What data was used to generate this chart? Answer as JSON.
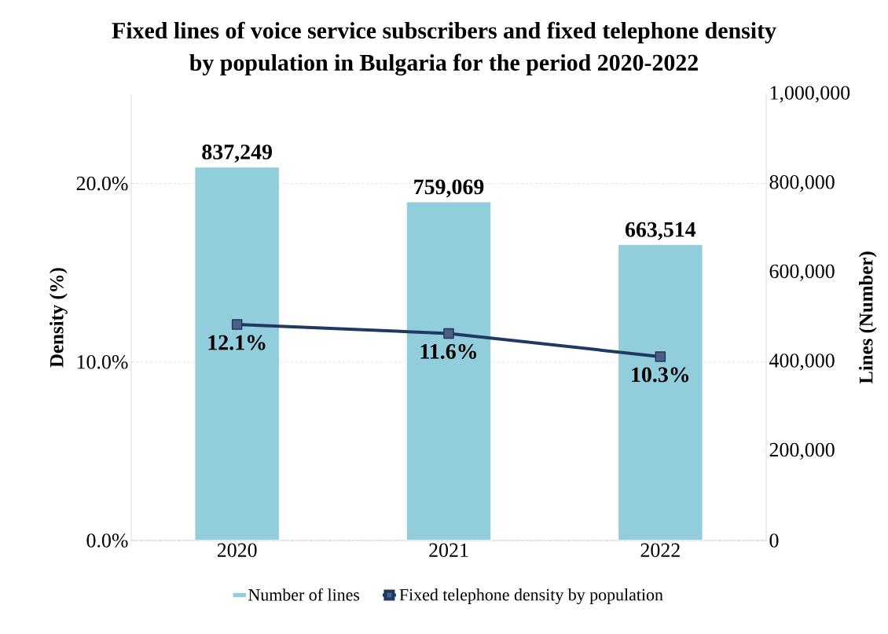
{
  "chart_data": {
    "type": "bar",
    "title": "Fixed lines of voice service subscribers and fixed telephone density by population in Bulgaria for the period 2020-2022",
    "categories": [
      "2020",
      "2021",
      "2022"
    ],
    "series": [
      {
        "name": "Number of lines",
        "axis": "y2",
        "color": "#92cddc",
        "values": [
          837249,
          759069,
          663514
        ],
        "value_labels": [
          "837,249",
          "759,069",
          "663,514"
        ]
      },
      {
        "name": "Fixed telephone density by population",
        "type": "line",
        "axis": "y",
        "color": "#1f3864",
        "marker": "square",
        "line_style": "solid",
        "values": [
          12.1,
          11.6,
          10.3
        ],
        "value_labels": [
          "12.1%",
          "11.6%",
          "10.3%"
        ]
      }
    ],
    "ylabel": "Density (%)",
    "y2label": "Lines (Number)",
    "ylim": [
      0,
      25
    ],
    "yticks": [
      {
        "value": 0,
        "label": "0.0%"
      },
      {
        "value": 10,
        "label": "10.0%"
      },
      {
        "value": 20,
        "label": "20.0%"
      }
    ],
    "y2lim": [
      0,
      1000000
    ],
    "y2ticks": [
      0,
      {
        "value": 200000,
        "label": "200,000"
      },
      {
        "value": 400000,
        "label": "400,000"
      },
      {
        "value": 600000,
        "label": "600,000"
      },
      {
        "value": 800000,
        "label": "800,000"
      },
      {
        "value": 1000000,
        "label": "1,000,000"
      }
    ],
    "grid": "y",
    "legend": "bottom"
  }
}
